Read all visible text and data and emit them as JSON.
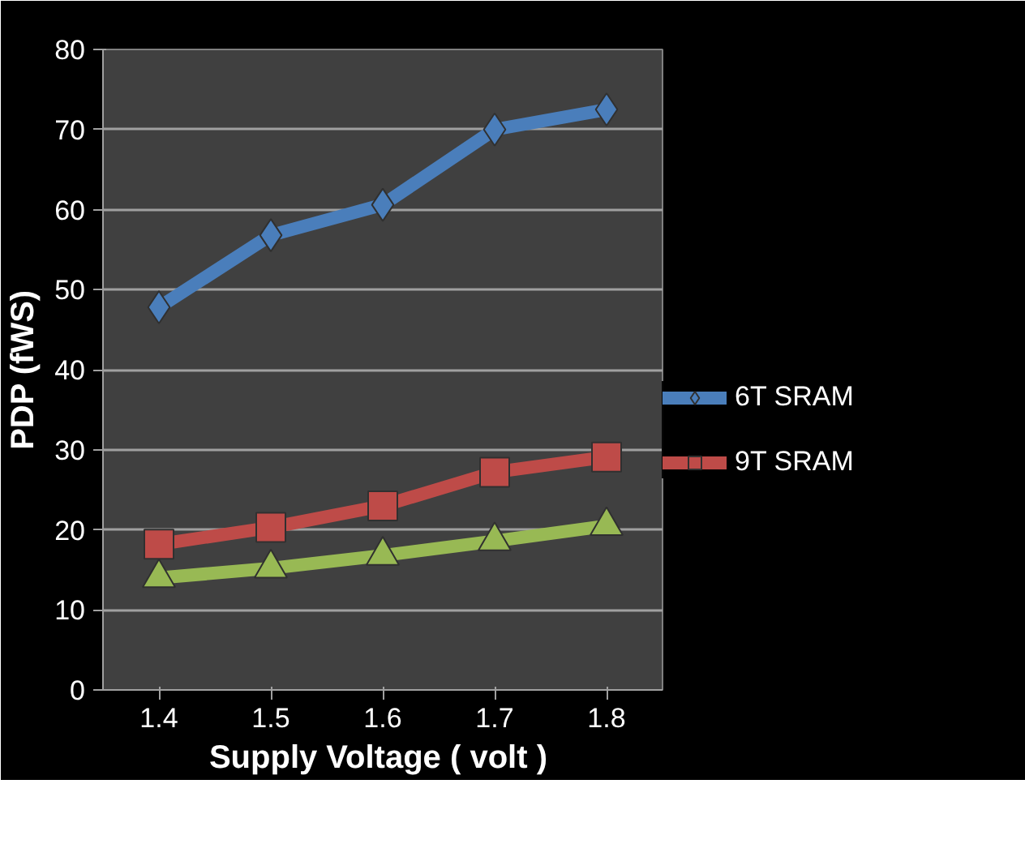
{
  "chart_data": {
    "type": "line",
    "xlabel": "Supply  Voltage ( volt )",
    "ylabel": "PDP (fWS)",
    "categories": [
      "1.4",
      "1.5",
      "1.6",
      "1.7",
      "1.8"
    ],
    "series": [
      {
        "name": "6T SRAM",
        "color": "#4a7ebb",
        "marker": "diamond",
        "values": [
          47.8,
          56.8,
          60.6,
          70.0,
          72.5
        ]
      },
      {
        "name": "9T SRAM",
        "color": "#be4b48",
        "marker": "square",
        "values": [
          18.2,
          20.3,
          23.0,
          27.2,
          29.1
        ]
      },
      {
        "color": "#98b954",
        "marker": "triangle",
        "values": [
          14.0,
          15.2,
          16.8,
          18.6,
          20.5
        ]
      }
    ],
    "ylim": [
      0,
      80
    ],
    "yticks": [
      0,
      10,
      20,
      30,
      40,
      50,
      60,
      70,
      80
    ],
    "grid": "y",
    "legend": "right",
    "line_style": "solid"
  }
}
